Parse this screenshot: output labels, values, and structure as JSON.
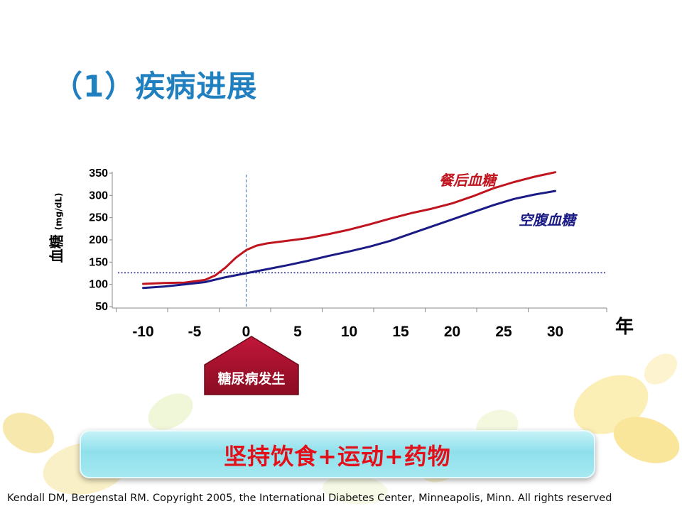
{
  "slide": {
    "title": "（1）疾病进展",
    "y_label_main": "血糖",
    "y_label_unit": "(mg/dL)",
    "x_unit": "年",
    "onset_label": "糖尿病发生",
    "banner": "坚持饮食+运动+药物",
    "citation": "Kendall DM, Bergenstal RM. Copyright 2005, the International Diabetes Center, Minneapolis, Minn. All rights reserved"
  },
  "colors": {
    "title": "#1f7fbf",
    "post_meal": "#c0141e",
    "fasting": "#1b1b86",
    "threshold": "#1b1b86",
    "onset_marker": "#a5102a",
    "banner_text": "#e3101a"
  },
  "chart_data": {
    "type": "line",
    "x_ticks": [
      -10,
      -5,
      0,
      5,
      10,
      15,
      20,
      25,
      30
    ],
    "y_ticks": [
      50,
      100,
      150,
      200,
      250,
      300,
      350
    ],
    "xlim": [
      -13,
      35
    ],
    "ylim": [
      50,
      350
    ],
    "grid": false,
    "series": [
      {
        "name": "餐后血糖",
        "color": "#c0141e",
        "x": [
          -10,
          -8,
          -6,
          -4,
          -3,
          -2,
          -1,
          0,
          1,
          2,
          4,
          6,
          8,
          10,
          12,
          14,
          16,
          18,
          20,
          22,
          24,
          26,
          28,
          30
        ],
        "y": [
          101,
          103,
          104,
          110,
          120,
          138,
          160,
          177,
          187,
          192,
          198,
          204,
          213,
          223,
          235,
          248,
          260,
          270,
          282,
          298,
          316,
          330,
          342,
          352
        ]
      },
      {
        "name": "空腹血糖",
        "color": "#1b1b86",
        "x": [
          -10,
          -8,
          -6,
          -4,
          -2,
          0,
          2,
          4,
          6,
          8,
          10,
          12,
          14,
          16,
          18,
          20,
          22,
          24,
          26,
          28,
          30
        ],
        "y": [
          92,
          95,
          100,
          105,
          116,
          125,
          134,
          143,
          153,
          164,
          174,
          185,
          198,
          214,
          230,
          246,
          262,
          278,
          292,
          302,
          310
        ]
      }
    ],
    "reference_lines": [
      {
        "orientation": "horizontal",
        "y": 126,
        "style": "dotted",
        "color": "#1b1b86"
      },
      {
        "orientation": "vertical",
        "x": 0,
        "style": "dashed",
        "color": "#3a6fd0"
      }
    ]
  }
}
